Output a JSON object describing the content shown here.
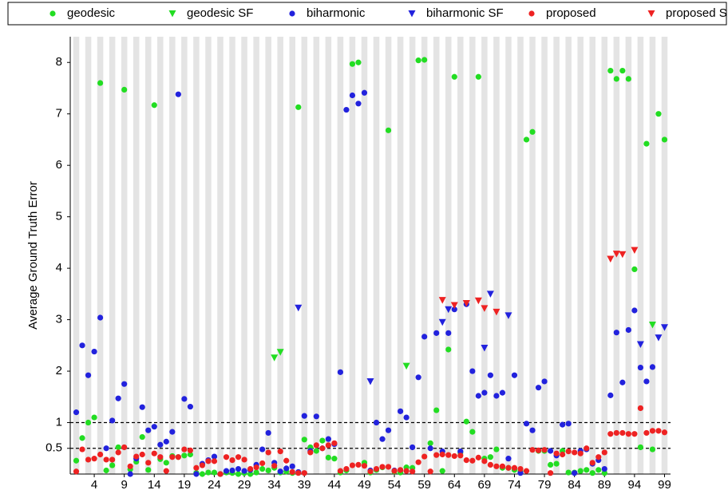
{
  "chart_data": {
    "type": "scatter",
    "y_label": "Average Ground Truth Error",
    "xlim": [
      0,
      100
    ],
    "ylim": [
      0,
      8.5
    ],
    "xticks": [
      4,
      9,
      14,
      19,
      24,
      29,
      34,
      39,
      44,
      49,
      54,
      59,
      64,
      69,
      74,
      79,
      84,
      89,
      94,
      99
    ],
    "yticks": [
      0.5,
      1,
      2,
      3,
      4,
      5,
      6,
      7,
      8
    ],
    "reference_lines": [
      0.5,
      1
    ],
    "legend": "top",
    "x": [
      1,
      2,
      3,
      4,
      5,
      6,
      7,
      8,
      9,
      10,
      11,
      12,
      13,
      14,
      15,
      16,
      17,
      18,
      19,
      20,
      21,
      22,
      23,
      24,
      25,
      26,
      27,
      28,
      29,
      30,
      31,
      32,
      33,
      34,
      35,
      36,
      37,
      38,
      39,
      40,
      41,
      42,
      43,
      44,
      45,
      46,
      47,
      48,
      49,
      50,
      51,
      52,
      53,
      54,
      55,
      56,
      57,
      58,
      59,
      60,
      61,
      62,
      63,
      64,
      65,
      66,
      67,
      68,
      69,
      70,
      71,
      72,
      73,
      74,
      75,
      76,
      77,
      78,
      79,
      80,
      81,
      82,
      83,
      84,
      85,
      86,
      87,
      88,
      89,
      90,
      91,
      92,
      93,
      94,
      95,
      96,
      97,
      98,
      99
    ],
    "series": [
      {
        "name": "geodesic",
        "color": "#22dd22",
        "marker": "circle",
        "values": [
          0.26,
          0.7,
          1.0,
          1.1,
          7.6,
          0.07,
          0.17,
          0.52,
          7.47,
          0.09,
          0.24,
          0.72,
          0.08,
          7.17,
          0.29,
          0.22,
          0.35,
          0.33,
          0.36,
          0.38,
          0.02,
          0,
          0.03,
          0.03,
          0,
          0.03,
          0.02,
          0,
          0.02,
          0,
          0.03,
          0.1,
          0.07,
          0.12,
          0.03,
          0.05,
          0.02,
          7.13,
          0.67,
          0.52,
          0.45,
          0.65,
          0.32,
          0.3,
          0.03,
          0.07,
          7.97,
          8.0,
          0.22,
          0.03,
          0.08,
          0.13,
          6.68,
          0.05,
          0.03,
          0.13,
          0.12,
          8.04,
          8.05,
          0.6,
          1.24,
          0.06,
          2.42,
          7.72,
          0.42,
          1.02,
          0.82,
          7.72,
          0.3,
          0.33,
          0.48,
          0.12,
          0.12,
          0.08,
          0.05,
          6.5,
          6.65,
          0.45,
          0.45,
          0.18,
          0.2,
          0.45,
          0.03,
          0.03,
          0.06,
          0.08,
          0.02,
          0.08,
          0.02,
          7.84,
          7.68,
          7.84,
          7.68,
          3.98,
          0.52,
          6.42,
          0.48,
          7.0,
          6.5
        ]
      },
      {
        "name": "geodesic SF",
        "color": "#22dd22",
        "marker": "triangle",
        "values": [
          null,
          null,
          null,
          null,
          null,
          null,
          null,
          null,
          null,
          null,
          null,
          null,
          null,
          null,
          null,
          null,
          null,
          null,
          null,
          null,
          null,
          null,
          null,
          null,
          null,
          null,
          null,
          null,
          null,
          null,
          null,
          null,
          null,
          2.26,
          2.37,
          null,
          null,
          null,
          null,
          null,
          null,
          null,
          null,
          null,
          null,
          null,
          null,
          null,
          null,
          null,
          null,
          null,
          null,
          null,
          null,
          2.1,
          null,
          null,
          null,
          null,
          null,
          null,
          null,
          null,
          null,
          null,
          null,
          null,
          null,
          null,
          null,
          null,
          null,
          null,
          null,
          null,
          null,
          null,
          null,
          null,
          null,
          null,
          null,
          null,
          null,
          null,
          null,
          null,
          null,
          null,
          null,
          null,
          null,
          null,
          null,
          null,
          2.9,
          null,
          null
        ]
      },
      {
        "name": "biharmonic",
        "color": "#2222dd",
        "marker": "circle",
        "values": [
          1.2,
          2.5,
          1.92,
          2.38,
          3.04,
          0.5,
          1.04,
          1.47,
          1.75,
          0.0,
          0.3,
          1.3,
          0.85,
          0.92,
          0.57,
          0.63,
          0.82,
          7.38,
          1.46,
          1.31,
          0.0,
          0.2,
          0.27,
          0.34,
          0.0,
          0.06,
          0.07,
          0.1,
          0.06,
          0.08,
          0.18,
          0.48,
          0.8,
          0.22,
          0.05,
          0.11,
          0.15,
          0.04,
          1.13,
          0.45,
          1.12,
          0.5,
          0.68,
          0.58,
          1.98,
          7.08,
          7.36,
          7.2,
          7.41,
          0.07,
          1.0,
          0.68,
          0.85,
          0.07,
          1.22,
          1.1,
          0.52,
          1.88,
          2.67,
          0.5,
          2.74,
          0.44,
          2.74,
          3.2,
          0.44,
          3.3,
          2.0,
          1.52,
          1.58,
          1.92,
          1.52,
          1.58,
          0.3,
          1.92,
          0.02,
          0.98,
          0.85,
          1.68,
          1.8,
          0.45,
          0.36,
          0.96,
          0.98,
          0.02,
          0.45,
          0.48,
          0.2,
          0.27,
          0.1,
          1.53,
          2.75,
          1.78,
          2.8,
          3.18,
          2.07,
          1.8,
          2.08,
          null,
          null
        ]
      },
      {
        "name": "biharmonic SF",
        "color": "#2222dd",
        "marker": "triangle",
        "values": [
          null,
          null,
          null,
          null,
          null,
          null,
          null,
          null,
          null,
          null,
          null,
          null,
          null,
          null,
          null,
          null,
          null,
          null,
          null,
          null,
          null,
          null,
          null,
          null,
          null,
          null,
          null,
          null,
          null,
          null,
          null,
          null,
          null,
          null,
          null,
          null,
          null,
          3.23,
          null,
          null,
          null,
          null,
          null,
          null,
          null,
          null,
          null,
          null,
          null,
          1.8,
          null,
          null,
          null,
          null,
          null,
          null,
          null,
          null,
          null,
          null,
          null,
          2.95,
          3.2,
          null,
          null,
          3.32,
          null,
          null,
          2.45,
          3.5,
          null,
          null,
          3.08,
          null,
          null,
          null,
          null,
          null,
          null,
          null,
          null,
          null,
          null,
          null,
          null,
          null,
          null,
          null,
          null,
          null,
          null,
          null,
          null,
          null,
          2.52,
          null,
          null,
          2.65,
          2.85
        ]
      },
      {
        "name": "proposed",
        "color": "#ee2222",
        "marker": "circle",
        "values": [
          0.05,
          0.48,
          0.28,
          0.3,
          0.38,
          0.28,
          0.28,
          0.42,
          0.52,
          0.15,
          0.34,
          0.38,
          0.22,
          0.4,
          0.33,
          0.06,
          0.33,
          0.33,
          0.48,
          0.46,
          0.12,
          0.17,
          0.25,
          0.25,
          0.0,
          0.33,
          0.27,
          0.33,
          0.28,
          0.1,
          0.13,
          0.21,
          0.42,
          0.16,
          0.44,
          0.26,
          0.04,
          0.02,
          0.02,
          0.42,
          0.56,
          0.5,
          0.56,
          0.6,
          0.06,
          0.1,
          0.17,
          0.18,
          0.16,
          0.05,
          0.1,
          0.14,
          0.14,
          0.06,
          0.08,
          0.06,
          0.05,
          0.23,
          0.34,
          0.05,
          0.37,
          0.38,
          0.37,
          0.35,
          0.36,
          0.27,
          0.26,
          0.32,
          0.25,
          0.18,
          0.15,
          0.15,
          0.12,
          0.12,
          0.1,
          0.06,
          0.47,
          0.46,
          0.47,
          0.02,
          0.4,
          0.38,
          0.44,
          0.42,
          0.4,
          0.5,
          0.22,
          0.33,
          0.42,
          0.78,
          0.8,
          0.8,
          0.78,
          0.78,
          1.28,
          0.8,
          0.84,
          0.84,
          0.81
        ]
      },
      {
        "name": "proposed SF",
        "color": "#ee2222",
        "marker": "triangle",
        "values": [
          null,
          null,
          null,
          null,
          null,
          null,
          null,
          null,
          null,
          null,
          null,
          null,
          null,
          null,
          null,
          null,
          null,
          null,
          null,
          null,
          null,
          null,
          null,
          null,
          null,
          null,
          null,
          null,
          null,
          null,
          null,
          null,
          null,
          null,
          null,
          null,
          null,
          null,
          null,
          null,
          null,
          null,
          null,
          null,
          null,
          null,
          null,
          null,
          null,
          null,
          null,
          null,
          null,
          null,
          null,
          null,
          null,
          null,
          null,
          null,
          null,
          3.38,
          null,
          3.28,
          null,
          3.32,
          null,
          3.37,
          3.22,
          null,
          3.15,
          null,
          null,
          null,
          null,
          null,
          null,
          null,
          null,
          null,
          null,
          null,
          null,
          null,
          null,
          null,
          null,
          null,
          null,
          4.18,
          4.28,
          4.27,
          null,
          4.35,
          null,
          null,
          null,
          null,
          null
        ]
      }
    ]
  }
}
